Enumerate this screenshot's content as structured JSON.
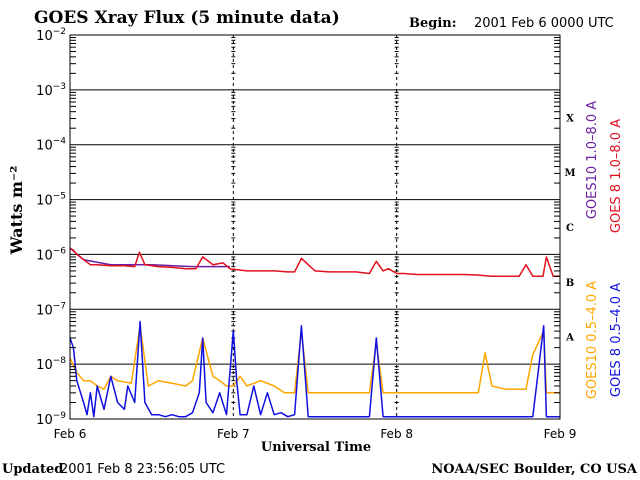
{
  "header": {
    "title": "GOES Xray Flux (5 minute data)",
    "begin_label": "Begin:",
    "begin_value": "2001 Feb 6 0000 UTC"
  },
  "footer": {
    "updated_label": "Updated",
    "updated_value": "2001 Feb  8 23:56:05 UTC",
    "credit": "NOAA/SEC Boulder, CO USA"
  },
  "colors": {
    "goes10_long": "#6a1fa0",
    "goes8_long": "#e0101c",
    "goes10_short": "#ffa500",
    "goes8_short": "#1010e0"
  },
  "chart_data": {
    "type": "line",
    "xlabel": "Universal Time",
    "ylabel": "Watts m⁻²",
    "yscale": "log",
    "ylim": [
      1e-09,
      0.01
    ],
    "xlim": [
      0,
      72
    ],
    "x_unit": "hours since 2001 Feb 6 0000 UTC",
    "x_ticks": [
      {
        "x": 0,
        "label": "Feb 6"
      },
      {
        "x": 24,
        "label": "Feb 7"
      },
      {
        "x": 48,
        "label": "Feb 8"
      },
      {
        "x": 72,
        "label": "Feb 9"
      }
    ],
    "y_ticks": [
      {
        "value": 0.01,
        "base": "10",
        "exp": "−2"
      },
      {
        "value": 0.001,
        "base": "10",
        "exp": "−3"
      },
      {
        "value": 0.0001,
        "base": "10",
        "exp": "−4"
      },
      {
        "value": 1e-05,
        "base": "10",
        "exp": "−5"
      },
      {
        "value": 1e-06,
        "base": "10",
        "exp": "−6"
      },
      {
        "value": 1e-07,
        "base": "10",
        "exp": "−7"
      },
      {
        "value": 1e-08,
        "base": "10",
        "exp": "−8"
      },
      {
        "value": 1e-09,
        "base": "10",
        "exp": "−9"
      }
    ],
    "flare_classes": [
      {
        "label": "X",
        "low": 0.0001,
        "high": 0.001
      },
      {
        "label": "M",
        "low": 1e-05,
        "high": 0.0001
      },
      {
        "label": "C",
        "low": 1e-06,
        "high": 1e-05
      },
      {
        "label": "B",
        "low": 1e-07,
        "high": 1e-06
      },
      {
        "label": "A",
        "low": 1e-08,
        "high": 1e-07
      }
    ],
    "series": [
      {
        "name": "GOES10 1.0–8.0 A",
        "color": "#6a1fa0",
        "x": [
          0,
          2,
          6,
          12,
          18,
          23.5
        ],
        "values": [
          1.3e-06,
          8e-07,
          6.5e-07,
          6.5e-07,
          6e-07,
          6e-07
        ]
      },
      {
        "name": "GOES 8 1.0–8.0 A",
        "color": "#e0101c",
        "x": [
          0,
          0.5,
          1,
          1.5,
          2,
          3,
          4,
          6,
          8,
          9.5,
          10.2,
          11,
          13,
          15,
          17,
          18.5,
          19.5,
          21,
          22.5,
          23.5,
          24.5,
          26,
          28,
          30,
          32,
          33,
          34,
          36,
          38,
          40,
          42,
          44,
          45,
          46,
          46.8,
          48,
          49,
          51,
          53,
          56,
          58,
          60,
          62,
          64,
          66,
          67,
          68,
          69.5,
          70,
          71,
          72
        ],
        "values": [
          1.3e-06,
          1.2e-06,
          1e-06,
          9e-07,
          8e-07,
          6.5e-07,
          6.5e-07,
          6.2e-07,
          6.2e-07,
          6e-07,
          1.1e-06,
          6.5e-07,
          6e-07,
          5.8e-07,
          5.5e-07,
          5.5e-07,
          9e-07,
          6.5e-07,
          7e-07,
          5.5e-07,
          5.3e-07,
          5e-07,
          5e-07,
          5e-07,
          4.8e-07,
          4.8e-07,
          8.5e-07,
          5e-07,
          4.8e-07,
          4.8e-07,
          4.8e-07,
          4.5e-07,
          7.5e-07,
          5e-07,
          5.5e-07,
          4.5e-07,
          4.5e-07,
          4.3e-07,
          4.3e-07,
          4.3e-07,
          4.3e-07,
          4.2e-07,
          4e-07,
          4e-07,
          4e-07,
          6.5e-07,
          4e-07,
          4e-07,
          9e-07,
          4e-07,
          4e-07
        ]
      },
      {
        "name": "GOES10 0.5–4.0 A",
        "color": "#ffa500",
        "x": [
          0,
          1,
          2,
          3,
          4,
          5,
          6,
          7,
          9,
          10.3,
          11.5,
          13,
          15,
          17,
          18,
          19.5,
          21,
          22,
          23,
          24,
          25,
          26,
          28,
          30,
          31.5,
          33,
          34,
          35,
          36,
          38,
          40,
          42,
          44,
          45,
          46,
          48,
          50,
          52,
          54,
          56,
          58,
          60,
          61,
          62,
          64,
          66,
          67,
          68,
          69.6,
          70,
          71,
          72
        ],
        "values": [
          1.3e-08,
          7e-09,
          5e-09,
          5e-09,
          4e-09,
          3.5e-09,
          6e-09,
          5e-09,
          4.5e-09,
          5e-08,
          4e-09,
          5e-09,
          4.5e-09,
          4e-09,
          5e-09,
          3e-08,
          6e-09,
          5e-09,
          4e-09,
          4e-09,
          6e-09,
          4e-09,
          5e-09,
          4e-09,
          3e-09,
          3e-09,
          4e-08,
          3e-09,
          3e-09,
          3e-09,
          3e-09,
          3e-09,
          3e-09,
          2.5e-08,
          3e-09,
          3e-09,
          3e-09,
          3e-09,
          3e-09,
          3e-09,
          3e-09,
          3e-09,
          1.6e-08,
          4e-09,
          3.5e-09,
          3.5e-09,
          3.5e-09,
          1.5e-08,
          4e-08,
          3e-09,
          3e-09,
          3e-09
        ]
      },
      {
        "name": "GOES 8 0.5–4.0 A",
        "color": "#1010e0",
        "x": [
          0,
          0.5,
          1,
          2,
          2.5,
          3,
          3.5,
          4,
          5,
          6,
          7,
          8,
          8.5,
          9.5,
          10.3,
          11,
          12,
          13,
          14,
          15,
          16,
          17,
          18,
          19,
          19.5,
          20,
          21,
          22,
          23,
          24,
          24.5,
          25,
          26,
          27,
          28,
          29,
          30,
          31,
          32,
          33,
          34,
          35,
          36,
          38,
          40,
          42,
          44,
          45,
          46,
          47,
          48,
          50,
          52,
          54,
          56,
          58,
          60,
          62,
          64,
          66,
          68,
          69.6,
          70,
          71,
          72
        ],
        "values": [
          3e-08,
          2e-08,
          5e-09,
          2e-09,
          1.2e-09,
          3e-09,
          1.1e-09,
          4e-09,
          1.5e-09,
          6e-09,
          2e-09,
          1.5e-09,
          4e-09,
          2e-09,
          6e-08,
          2e-09,
          1.2e-09,
          1.2e-09,
          1.1e-09,
          1.2e-09,
          1.1e-09,
          1.1e-09,
          1.3e-09,
          3e-09,
          3e-08,
          2e-09,
          1.3e-09,
          3e-09,
          1.2e-09,
          4e-08,
          5e-09,
          1.2e-09,
          1.2e-09,
          4e-09,
          1.2e-09,
          3e-09,
          1.2e-09,
          1.3e-09,
          1.1e-09,
          1.2e-09,
          5e-08,
          1.1e-09,
          1.1e-09,
          1.1e-09,
          1.1e-09,
          1.1e-09,
          1.1e-09,
          3e-08,
          1.1e-09,
          1.1e-09,
          1.1e-09,
          1.1e-09,
          1.1e-09,
          1.1e-09,
          1.1e-09,
          1.1e-09,
          1.1e-09,
          1.1e-09,
          1.1e-09,
          1.1e-09,
          1.1e-09,
          5e-08,
          1.1e-09,
          1.1e-09,
          1.1e-09
        ]
      }
    ]
  }
}
